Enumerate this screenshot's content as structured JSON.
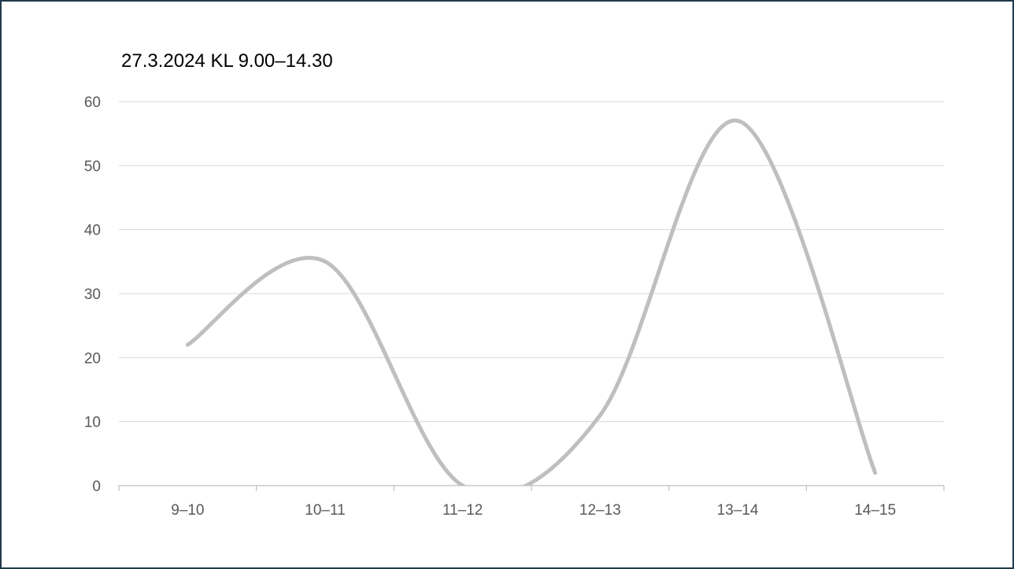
{
  "chart_data": {
    "type": "line",
    "title": "27.3.2024 KL 9.00–14.30",
    "categories": [
      "9–10",
      "10–11",
      "11–12",
      "12–13",
      "13–14",
      "14–15"
    ],
    "series": [
      {
        "values": [
          22,
          35,
          0,
          11,
          57,
          2
        ]
      }
    ],
    "ylim": [
      0,
      60
    ],
    "yticks": [
      0,
      10,
      20,
      30,
      40,
      50,
      60
    ],
    "grid": true,
    "smooth": true,
    "line_color": "#bfbfbf",
    "grid_color": "#d9d9d9",
    "axis_color": "#bfbfbf",
    "tick_color": "#595959"
  }
}
